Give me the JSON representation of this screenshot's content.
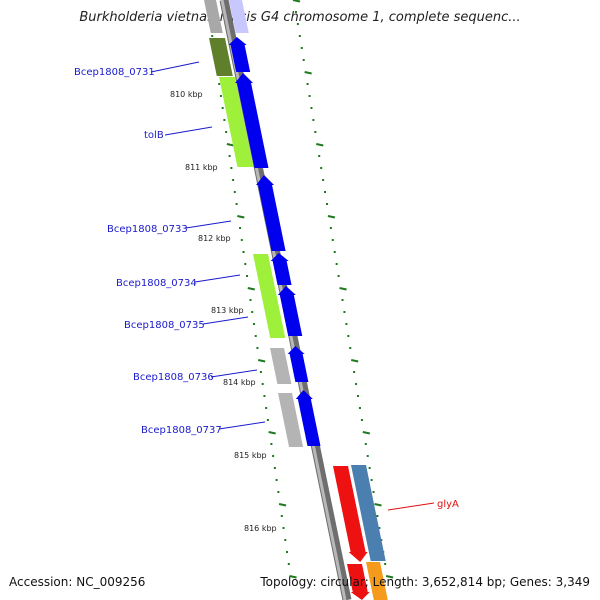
{
  "title": "Burkholderia vietnamiensis G4 chromosome 1, complete sequenc...",
  "accession": "Accession: NC_009256",
  "summary": "Topology: circular; Length: 3,652,814 bp; Genes: 3,349",
  "colors": {
    "backbone": "#8c8c8c",
    "tick": "#1e7a1e",
    "cds_forward": "#0000ee",
    "gene_label": "#1a1acc",
    "highlight_label": "#dd1111"
  },
  "kbp_labels": [
    "810 kbp",
    "811 kbp",
    "812 kbp",
    "813 kbp",
    "814 kbp",
    "815 kbp",
    "816 kbp"
  ],
  "genes": [
    {
      "label": "Bcep1808_0731"
    },
    {
      "label": "tolB"
    },
    {
      "label": "Bcep1808_0733"
    },
    {
      "label": "Bcep1808_0734"
    },
    {
      "label": "Bcep1808_0735"
    },
    {
      "label": "Bcep1808_0736"
    },
    {
      "label": "Bcep1808_0737"
    },
    {
      "label": "glyA"
    }
  ]
}
